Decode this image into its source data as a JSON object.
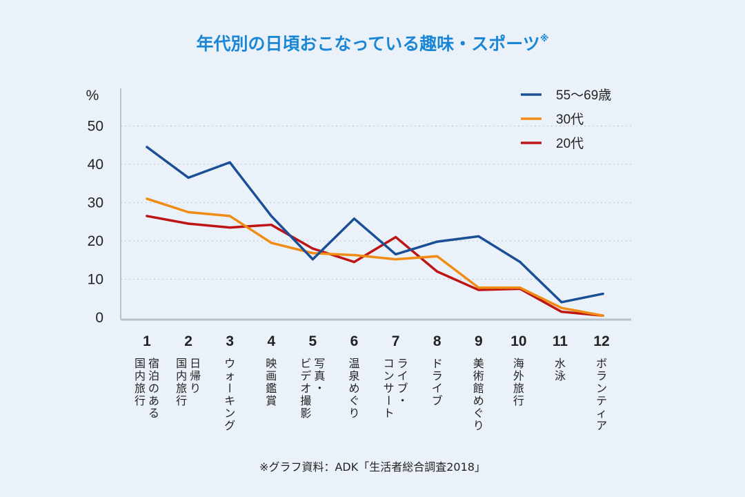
{
  "chart_data": {
    "type": "line",
    "title": "年代別の日頃おこなっている趣味・スポーツ",
    "title_mark": "※",
    "y_unit_label": "%",
    "ylim": [
      0,
      55
    ],
    "yticks": [
      0,
      10,
      20,
      30,
      40,
      50
    ],
    "grid": "horizontal dotted",
    "legend_position": "top-right",
    "categories": [
      "1",
      "2",
      "3",
      "4",
      "5",
      "6",
      "7",
      "8",
      "9",
      "10",
      "11",
      "12"
    ],
    "category_labels": [
      [
        "宿泊のある",
        "国内旅行"
      ],
      [
        "日帰り",
        "国内旅行"
      ],
      [
        "ウォーキング"
      ],
      [
        "映画鑑賞"
      ],
      [
        "写真・",
        "ビデオ撮影"
      ],
      [
        "温泉めぐり"
      ],
      [
        "ライブ・",
        "コンサート"
      ],
      [
        "ドライブ"
      ],
      [
        "美術館めぐり"
      ],
      [
        "海外旅行"
      ],
      [
        "水泳"
      ],
      [
        "ボランティア"
      ]
    ],
    "series": [
      {
        "name": "55〜69歳",
        "color": "#1a4f96",
        "values": [
          44.5,
          36.5,
          40.5,
          26.5,
          15.2,
          25.8,
          16.5,
          19.8,
          21.2,
          14.5,
          4.0,
          6.2
        ]
      },
      {
        "name": "30代",
        "color": "#f08c14",
        "values": [
          31.0,
          27.5,
          26.5,
          19.5,
          16.8,
          16.3,
          15.2,
          16.0,
          7.8,
          7.8,
          2.5,
          0.5
        ]
      },
      {
        "name": "20代",
        "color": "#be1414",
        "values": [
          26.5,
          24.5,
          23.5,
          24.2,
          18.0,
          14.5,
          21.0,
          12.0,
          7.2,
          7.5,
          1.5,
          0.5
        ]
      }
    ],
    "source_note": "※グラフ資料：ADK「生活者総合調査2018」"
  }
}
